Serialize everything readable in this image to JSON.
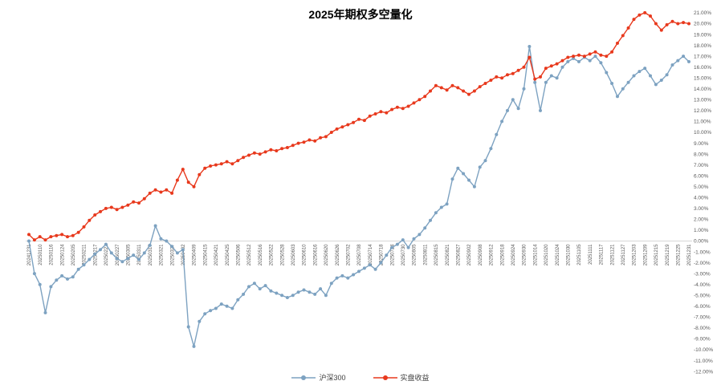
{
  "title": "2025年期权多空量化",
  "colors": {
    "hs300_line": "#7DA2C1",
    "shipan_line": "#E8391D",
    "axis_text": "#595959",
    "zero_axis": "#d6d6d6",
    "title_text": "#000000"
  },
  "legend": {
    "items": [
      {
        "label": "沪深300"
      },
      {
        "label": "实盘收益"
      }
    ]
  },
  "chart_data": {
    "type": "line",
    "title": "2025年期权多空量化",
    "xlabel": "",
    "ylabel": "",
    "ylim": [
      -12,
      21
    ],
    "y_tick_step": 1,
    "y_tick_format": "0.00%",
    "x_tick_every": 2,
    "grid": false,
    "legend_position": "bottom",
    "marker": "circle",
    "x": [
      "20241231",
      "20250106",
      "20250110",
      "20250114",
      "20250116",
      "20250120",
      "20250124",
      "20250127",
      "20250205",
      "20250207",
      "20250211",
      "20250213",
      "20250217",
      "20250219",
      "20250221",
      "20250225",
      "20250227",
      "20250303",
      "20250305",
      "20250307",
      "20250311",
      "20250313",
      "20250317",
      "20250319",
      "20250321",
      "20250325",
      "20250327",
      "20250331",
      "20250402",
      "20250407",
      "20250409",
      "20250411",
      "20250415",
      "20250417",
      "20250421",
      "20250423",
      "20250425",
      "20250429",
      "20250506",
      "20250508",
      "20250512",
      "20250514",
      "20250516",
      "20250520",
      "20250522",
      "20250526",
      "20250528",
      "20250530",
      "20250603",
      "20250606",
      "20250610",
      "20250612",
      "20250616",
      "20250618",
      "20250620",
      "20250624",
      "20250626",
      "20250630",
      "20250702",
      "20250704",
      "20250708",
      "20250710",
      "20250714",
      "20250716",
      "20250718",
      "20250722",
      "20250724",
      "20250728",
      "20250730",
      "20250801",
      "20250805",
      "20250807",
      "20250811",
      "20250813",
      "20250815",
      "20250819",
      "20250821",
      "20250825",
      "20250827",
      "20250829",
      "20250902",
      "20250904",
      "20250908",
      "20250910",
      "20250912",
      "20250916",
      "20250918",
      "20250922",
      "20250924",
      "20250926",
      "20250930",
      "20251009",
      "20251014",
      "20251016",
      "20251020",
      "20251022",
      "20251024",
      "20251028",
      "20251030",
      "20251103",
      "20251105",
      "20251107",
      "20251111",
      "20251113",
      "20251117",
      "20251119",
      "20251121",
      "20251125",
      "20251127",
      "20251201",
      "20251203",
      "20251205",
      "20251209",
      "20251211",
      "20251215",
      "20251217",
      "20251219",
      "20251223",
      "20251225",
      "20251229",
      "20251231"
    ],
    "series": [
      {
        "name": "沪深300",
        "color": "#7DA2C1",
        "values": [
          0.0,
          -3.0,
          -4.0,
          -6.6,
          -4.2,
          -3.6,
          -3.2,
          -3.5,
          -3.3,
          -2.6,
          -2.2,
          -1.7,
          -1.2,
          -0.8,
          -0.3,
          -1.1,
          -1.6,
          -1.9,
          -1.6,
          -1.3,
          -1.7,
          -1.1,
          -0.4,
          1.4,
          0.2,
          0.0,
          -0.5,
          -1.1,
          -0.8,
          -7.9,
          -9.7,
          -7.4,
          -6.7,
          -6.4,
          -6.2,
          -5.8,
          -6.0,
          -6.2,
          -5.4,
          -4.9,
          -4.2,
          -3.9,
          -4.4,
          -4.1,
          -4.6,
          -4.8,
          -5.0,
          -5.2,
          -5.0,
          -4.7,
          -4.5,
          -4.7,
          -4.9,
          -4.4,
          -5.0,
          -3.9,
          -3.4,
          -3.2,
          -3.4,
          -3.1,
          -2.8,
          -2.5,
          -2.2,
          -2.6,
          -2.0,
          -1.3,
          -0.6,
          -0.3,
          0.1,
          -0.6,
          0.2,
          0.6,
          1.2,
          1.9,
          2.6,
          3.1,
          3.4,
          5.7,
          6.7,
          6.2,
          5.6,
          5.0,
          6.8,
          7.4,
          8.5,
          9.8,
          11.0,
          12.0,
          13.0,
          12.2,
          14.0,
          17.9,
          14.6,
          12.0,
          14.6,
          15.2,
          15.0,
          16.0,
          16.5,
          16.8,
          16.5,
          16.9,
          16.6,
          17.0,
          16.4,
          15.5,
          14.5,
          13.3,
          14.0,
          14.6,
          15.2,
          15.6,
          15.9,
          15.2,
          14.4,
          14.8,
          15.3,
          16.2,
          16.6,
          17.0,
          16.5
        ]
      },
      {
        "name": "实盘收益",
        "color": "#E8391D",
        "values": [
          0.6,
          0.1,
          0.4,
          0.1,
          0.4,
          0.5,
          0.6,
          0.4,
          0.5,
          0.8,
          1.3,
          1.9,
          2.4,
          2.7,
          3.0,
          3.1,
          2.9,
          3.1,
          3.3,
          3.6,
          3.5,
          3.9,
          4.4,
          4.7,
          4.5,
          4.7,
          4.4,
          5.6,
          6.6,
          5.4,
          5.0,
          6.1,
          6.7,
          6.9,
          7.0,
          7.1,
          7.3,
          7.1,
          7.4,
          7.7,
          7.9,
          8.1,
          8.0,
          8.2,
          8.4,
          8.3,
          8.5,
          8.6,
          8.8,
          9.0,
          9.1,
          9.3,
          9.2,
          9.5,
          9.6,
          10.0,
          10.3,
          10.5,
          10.7,
          10.9,
          11.2,
          11.1,
          11.5,
          11.7,
          11.9,
          11.8,
          12.1,
          12.3,
          12.2,
          12.4,
          12.7,
          13.0,
          13.3,
          13.8,
          14.3,
          14.1,
          13.9,
          14.3,
          14.1,
          13.8,
          13.5,
          13.8,
          14.2,
          14.5,
          14.8,
          15.1,
          15.0,
          15.3,
          15.4,
          15.7,
          16.0,
          16.9,
          14.9,
          15.1,
          15.9,
          16.1,
          16.3,
          16.6,
          16.9,
          17.0,
          17.1,
          17.0,
          17.2,
          17.4,
          17.1,
          17.0,
          17.4,
          18.2,
          18.9,
          19.6,
          20.4,
          20.8,
          21.0,
          20.7,
          20.0,
          19.4,
          19.9,
          20.2,
          20.0,
          20.1,
          20.0
        ]
      }
    ]
  }
}
